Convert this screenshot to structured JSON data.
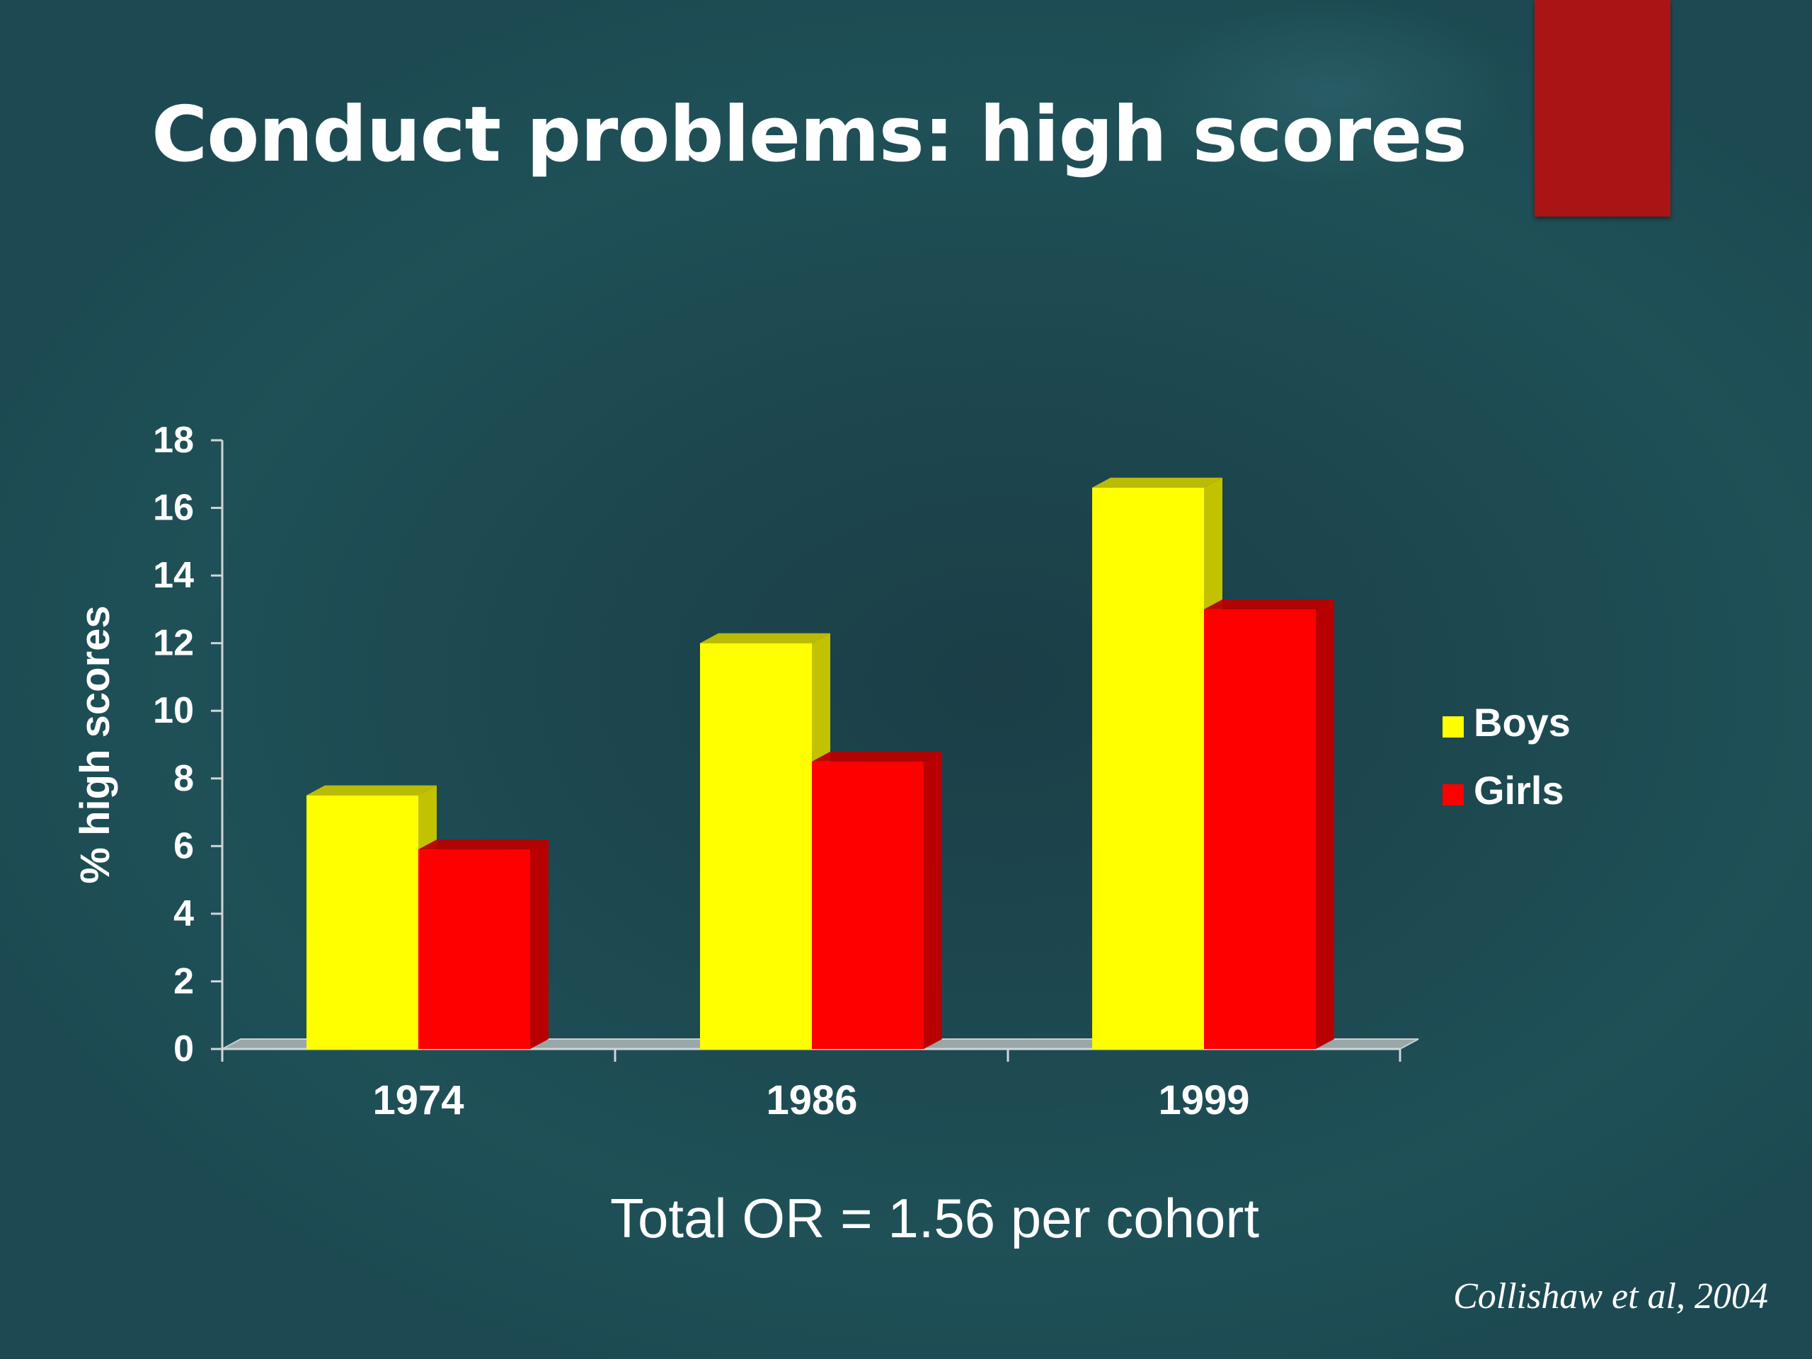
{
  "slide": {
    "title": "Conduct problems: high scores",
    "note": "Total OR = 1.56 per cohort",
    "citation": "Collishaw et al, 2004",
    "accent_color": "#ab1414"
  },
  "chart_data": {
    "type": "bar",
    "categories": [
      "1974",
      "1986",
      "1999"
    ],
    "series": [
      {
        "name": "Boys",
        "values": [
          7.5,
          12.0,
          16.6
        ],
        "color": "#ffff00",
        "side_color": "#c2c200"
      },
      {
        "name": "Girls",
        "values": [
          5.9,
          8.5,
          13.0
        ],
        "color": "#ff0000",
        "side_color": "#b80000"
      }
    ],
    "ylabel": "% high scores",
    "ylim": [
      0,
      18
    ],
    "yticks": [
      0,
      2,
      4,
      6,
      8,
      10,
      12,
      14,
      16,
      18
    ],
    "legend": "right",
    "grid": false,
    "style": "3d-column"
  }
}
